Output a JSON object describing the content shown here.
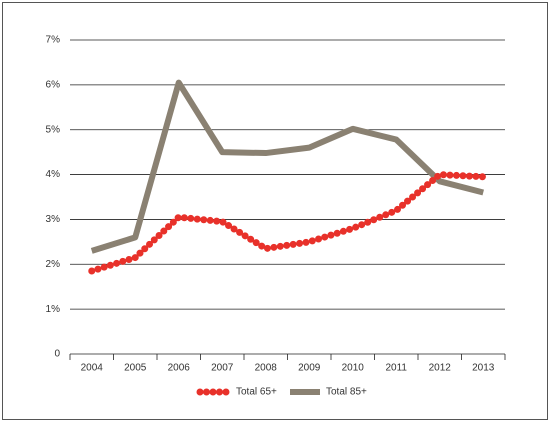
{
  "chart_data": {
    "type": "line",
    "categories": [
      "2004",
      "2005",
      "2006",
      "2007",
      "2008",
      "2009",
      "2010",
      "2011",
      "2012",
      "2013"
    ],
    "series": [
      {
        "name": "Total 65+",
        "color": "#e8312a",
        "style": "dotted",
        "values": [
          1.85,
          2.15,
          3.05,
          2.95,
          2.35,
          2.5,
          2.8,
          3.2,
          4.0,
          3.95
        ]
      },
      {
        "name": "Total 85+",
        "color": "#8a8172",
        "style": "solid",
        "values": [
          2.3,
          2.6,
          6.05,
          4.5,
          4.48,
          4.6,
          5.02,
          4.78,
          3.85,
          3.6
        ]
      }
    ],
    "ylim": [
      0,
      7
    ],
    "yticks": [
      0,
      {
        "value": 1,
        "label": "1%"
      },
      {
        "value": 2,
        "label": "2%"
      },
      {
        "value": 3,
        "label": "3%"
      },
      {
        "value": 4,
        "label": "4%"
      },
      {
        "value": 5,
        "label": "5%"
      },
      {
        "value": 6,
        "label": "6%"
      },
      {
        "value": 7,
        "label": "7%"
      }
    ],
    "grid": true,
    "legend": "bottom"
  }
}
